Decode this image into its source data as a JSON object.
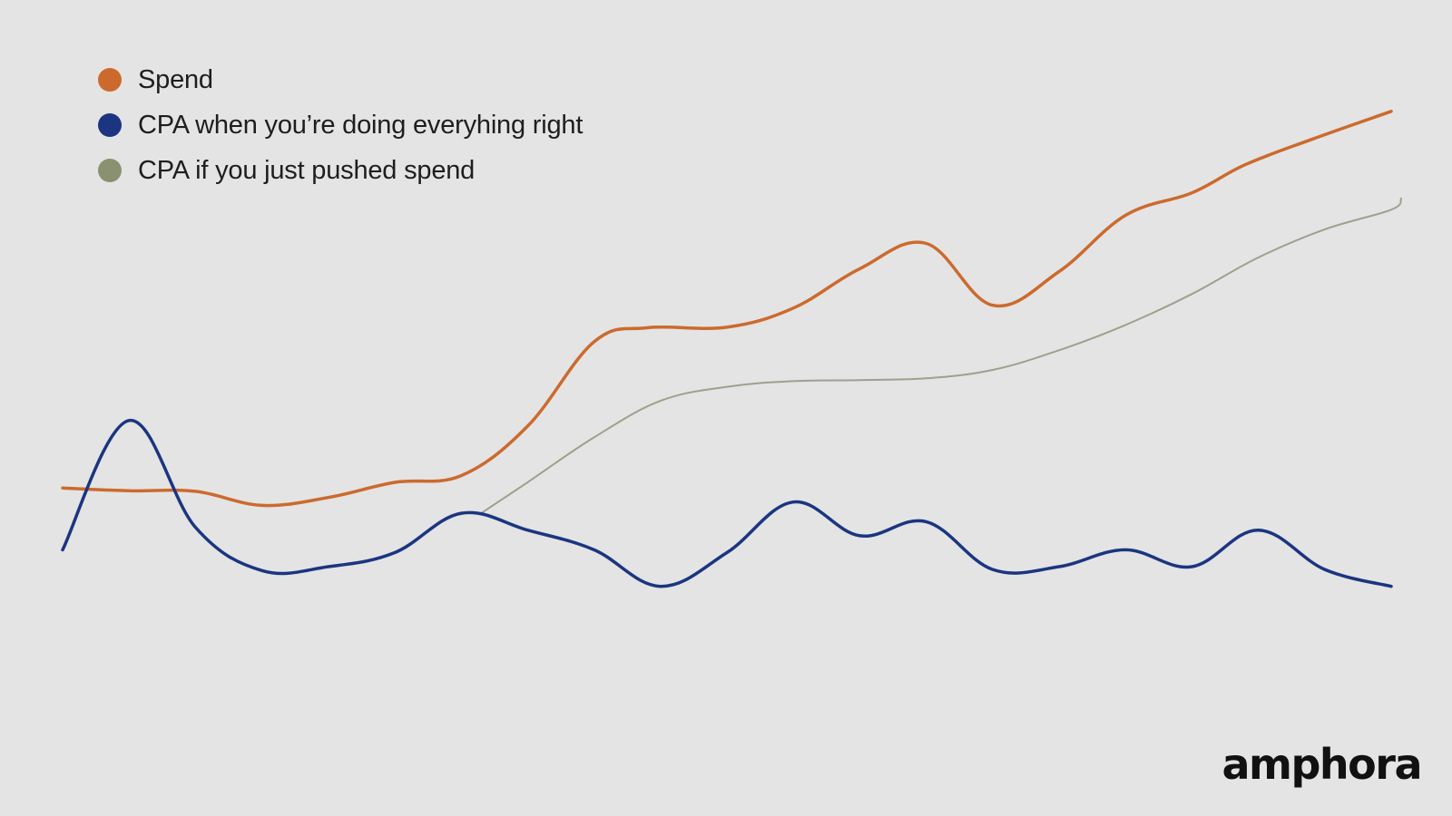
{
  "chart_data": {
    "type": "line",
    "title": "",
    "xlabel": "",
    "ylabel": "",
    "grid": false,
    "axes_visible": false,
    "legend_position": "top-left",
    "xlim": [
      0,
      20
    ],
    "ylim": [
      0,
      100
    ],
    "series": [
      {
        "name": "Spend",
        "color": "#cc6a2e",
        "stroke_width": 3.5,
        "x": [
          0,
          1,
          2,
          3,
          4,
          5,
          6,
          7,
          8,
          8.8,
          10,
          11,
          12,
          13,
          14,
          15,
          16,
          17,
          17.8,
          18.8,
          20
        ],
        "y": [
          39,
          38.5,
          38.4,
          35.9,
          37.3,
          40,
          41.2,
          50,
          65,
          67.5,
          67.6,
          71,
          78,
          82.5,
          71.5,
          77.5,
          87.5,
          91.5,
          96.5,
          101,
          106
        ]
      },
      {
        "name": "CPA when you’re doing everyhing right",
        "color": "#1b3580",
        "stroke_width": 3.5,
        "x": [
          0,
          1,
          2,
          3,
          4,
          5,
          6,
          7,
          8,
          9,
          10,
          11,
          12,
          13,
          14,
          15,
          16,
          17,
          18,
          19,
          20
        ],
        "y": [
          28,
          51,
          32,
          24.3,
          25,
          27.5,
          34.5,
          31.5,
          28,
          21.5,
          27.5,
          36.5,
          30.5,
          33,
          24.5,
          25,
          28,
          25,
          31.5,
          24.5,
          21.5
        ]
      },
      {
        "name": "CPA if you just pushed spend",
        "color": "#9aa38b",
        "stroke_width": 2,
        "x": [
          6.3,
          7,
          8,
          9,
          10,
          11,
          12,
          13,
          14,
          15,
          16,
          17,
          18,
          19,
          20,
          20.15
        ],
        "y": [
          34.5,
          40,
          48,
          54.5,
          57,
          58,
          58.2,
          58.5,
          60,
          63.5,
          68,
          73.5,
          80,
          85,
          88.5,
          90.5
        ]
      }
    ]
  },
  "brand": {
    "logo_text": "amphora"
  }
}
